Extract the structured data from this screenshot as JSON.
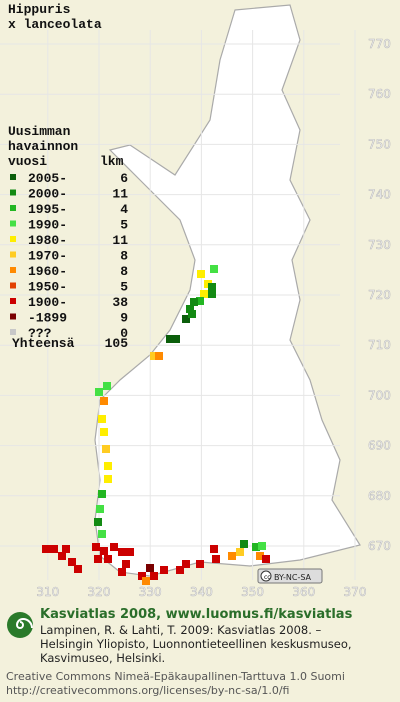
{
  "header": {
    "title_lines": [
      "Hippuris",
      "x lanceolata"
    ]
  },
  "legend": {
    "heading": [
      "Uusimman",
      "havainnon"
    ],
    "col_period": "vuosi",
    "col_count": "lkm",
    "rows": [
      {
        "label": "2005-",
        "count": 6,
        "color": "#0b5e0b"
      },
      {
        "label": "2000-",
        "count": 11,
        "color": "#138a13"
      },
      {
        "label": "1995-",
        "count": 4,
        "color": "#22b622"
      },
      {
        "label": "1990-",
        "count": 5,
        "color": "#44e044"
      },
      {
        "label": "1980-",
        "count": 11,
        "color": "#ffee00"
      },
      {
        "label": "1970-",
        "count": 8,
        "color": "#ffcc22"
      },
      {
        "label": "1960-",
        "count": 8,
        "color": "#ff8a00"
      },
      {
        "label": "1950-",
        "count": 5,
        "color": "#e24000"
      },
      {
        "label": "1900-",
        "count": 38,
        "color": "#cc0000"
      },
      {
        "label": "-1899",
        "count": 9,
        "color": "#7a0000"
      },
      {
        "label": "???",
        "count": 0,
        "color": "#c8c8c8"
      }
    ],
    "total_label": "Yhteensä",
    "total": 105
  },
  "grid": {
    "north": [
      770,
      760,
      750,
      740,
      730,
      720,
      710,
      700,
      690,
      680,
      670
    ],
    "east": [
      310,
      320,
      330,
      340,
      350,
      360,
      370
    ]
  },
  "badge": "BY-NC-SA",
  "footer": {
    "brand": "Kasviatlas 2008, www.luomus.fi/kasviatlas",
    "citation": [
      "Lampinen, R. & Lahti, T. 2009: Kasviatlas 2008. –",
      "Helsingin Yliopisto, Luonnontieteellinen keskusmuseo,",
      "Kasvimuseo, Helsinki."
    ],
    "license": [
      "Creative Commons Nimeä-Epäkaupallinen-Tarttuva 1.0 Suomi",
      "http://creativecommons.org/licenses/by-nc-sa/1.0/fi"
    ]
  }
}
